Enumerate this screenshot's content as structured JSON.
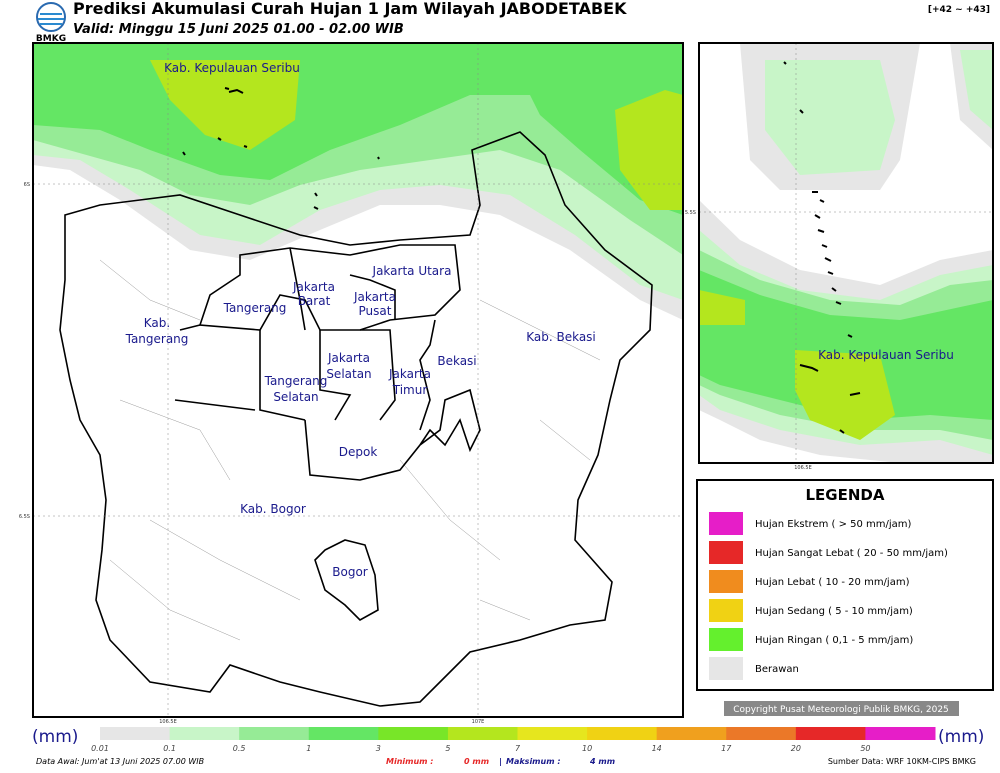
{
  "header": {
    "logo": "BMKG",
    "title": "Prediksi Akumulasi Curah Hujan 1 Jam Wilayah JABODETABEK",
    "subtitle": "Valid: Minggu 15 Juni 2025 01.00 - 02.00 WIB",
    "range": "[+42 ~ +43]"
  },
  "map": {
    "labels": [
      {
        "lines": [
          "Kab. Kepulauan Seribu"
        ]
      },
      {
        "lines": [
          "Jakarta Utara"
        ]
      },
      {
        "lines": [
          "Jakarta",
          "Barat"
        ]
      },
      {
        "lines": [
          "Jakarta",
          "Pusat"
        ]
      },
      {
        "lines": [
          "Tangerang"
        ]
      },
      {
        "lines": [
          "Kab.",
          "Tangerang"
        ]
      },
      {
        "lines": [
          "Jakarta",
          "Selatan"
        ]
      },
      {
        "lines": [
          "Tangerang",
          "Selatan"
        ]
      },
      {
        "lines": [
          "Jakarta",
          "Timur"
        ]
      },
      {
        "lines": [
          "Bekasi"
        ]
      },
      {
        "lines": [
          "Kab. Bekasi"
        ]
      },
      {
        "lines": [
          "Depok"
        ]
      },
      {
        "lines": [
          "Kab. Bogor"
        ]
      },
      {
        "lines": [
          "Bogor"
        ]
      }
    ],
    "lat_labels": [
      "6S",
      "6.5S"
    ],
    "lon_labels": [
      "106.5E",
      "107E"
    ]
  },
  "inset": {
    "labels": [
      "Kab. Kepulauan Seribu"
    ],
    "lat_label": "5.5S",
    "lon_label": "106.5E"
  },
  "legend": {
    "title": "LEGENDA",
    "items": [
      {
        "label": "Hujan Ekstrem ( > 50 mm/jam)",
        "color": "#e61ec8"
      },
      {
        "label": "Hujan Sangat Lebat ( 20 - 50 mm/jam)",
        "color": "#e62828"
      },
      {
        "label": "Hujan Lebat ( 10 - 20 mm/jam)",
        "color": "#f08c1e"
      },
      {
        "label": "Hujan Sedang ( 5 - 10 mm/jam)",
        "color": "#f0d214"
      },
      {
        "label": "Hujan Ringan ( 0,1 - 5 mm/jam)",
        "color": "#64f02d"
      },
      {
        "label": "Berawan",
        "color": "#e6e6e6"
      }
    ]
  },
  "copyright": "Copyright Pusat Meteorologi Publik BMKG, 2025",
  "colorbar": {
    "unit_left": "(mm)",
    "unit_right": "(mm)",
    "ticks": [
      "0.01",
      "0.1",
      "0.5",
      "1",
      "3",
      "5",
      "7",
      "10",
      "14",
      "17",
      "20",
      "50"
    ],
    "colors": [
      "#e6e6e6",
      "#c8f5c8",
      "#96eb96",
      "#64e664",
      "#78e628",
      "#b4e61e",
      "#e6e61e",
      "#f0d214",
      "#f0a01e",
      "#eb7828",
      "#e62828",
      "#e61ec8"
    ]
  },
  "footer": {
    "data_awal": "Data Awal: Jum'at 13 Juni 2025 07.00 WIB",
    "min_label": "Minimum :",
    "min_value": "0 mm",
    "separator": "|",
    "max_label": "Maksimum :",
    "max_value": "4 mm",
    "source": "Sumber Data: WRF 10KM-CIPS BMKG"
  }
}
